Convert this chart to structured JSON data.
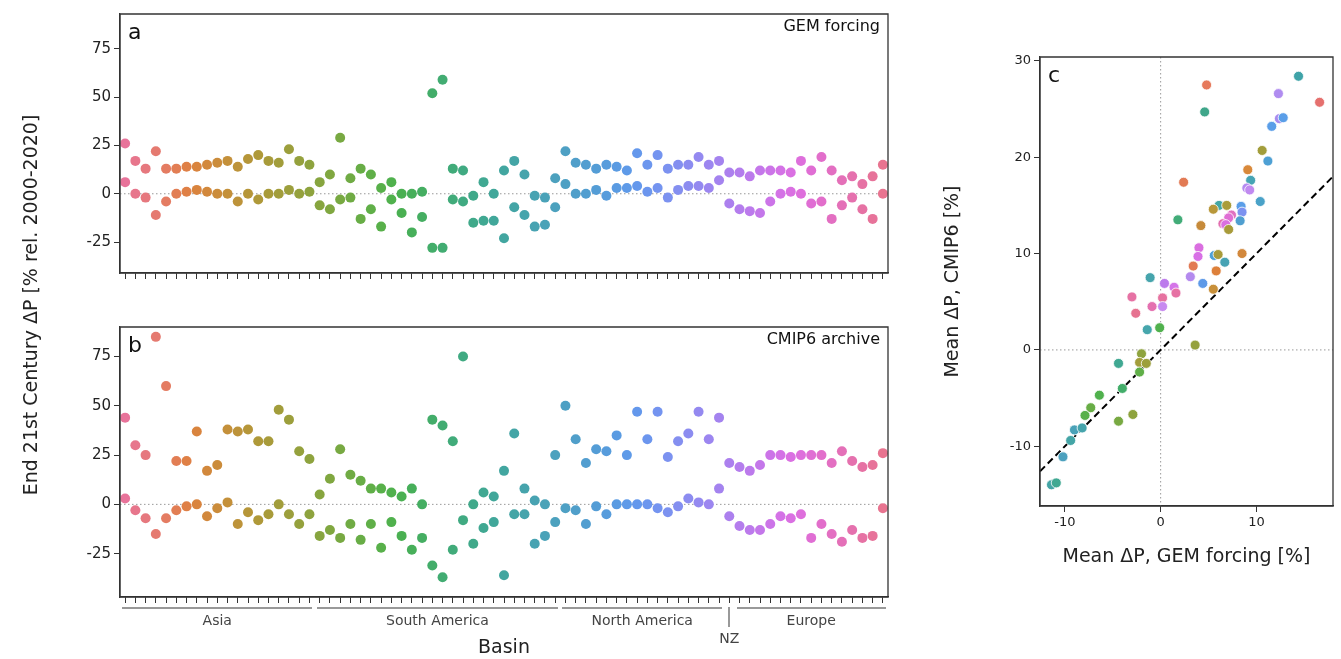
{
  "chart_data": [
    {
      "type": "scatter",
      "ylabel": "End 21st Century ΔP [% rel. 2000-2020]",
      "annotations": [
        "a",
        "GEM forcing"
      ],
      "categories": [
        null,
        null,
        null,
        null,
        null,
        null,
        null,
        null,
        null,
        null,
        null,
        null,
        null,
        null,
        null,
        null,
        null,
        null,
        null,
        null,
        null,
        null,
        null,
        null,
        null,
        null,
        null,
        null,
        null,
        null,
        null,
        null,
        null,
        null,
        null,
        null,
        null,
        null,
        null,
        null,
        null,
        null,
        null,
        null,
        null,
        null,
        null,
        null,
        null,
        null,
        null,
        null,
        null,
        null,
        null,
        null,
        null,
        null,
        null,
        null,
        null,
        null,
        null,
        null,
        null,
        null,
        null,
        null,
        null,
        null,
        null,
        null,
        null,
        null,
        null
      ],
      "ylim": [
        -41,
        93
      ],
      "yticks": [
        -25,
        0,
        25,
        50,
        75
      ],
      "grid": false,
      "legend": false,
      "marker": "circle",
      "ref_lines": [
        {
          "axis": "y",
          "value": 0,
          "color": "#999999",
          "line_style": "dotted"
        }
      ],
      "series": [
        {
          "values": [
            6,
            0,
            -2,
            -11,
            -4,
            0,
            1,
            2,
            1,
            0,
            0,
            -4,
            0,
            -3,
            0,
            0,
            2,
            0,
            1,
            -6,
            -8,
            -3,
            -2,
            -13,
            -8,
            -17,
            -3,
            -10,
            -20,
            -12,
            -28,
            -28,
            -3,
            -4,
            -15,
            -14,
            -14,
            -23,
            -7,
            -11,
            -17,
            -16,
            -7,
            5,
            0,
            0,
            2,
            -1,
            3,
            3,
            4,
            1,
            3,
            -2,
            2,
            4,
            4,
            3,
            7,
            -5,
            -8,
            -9,
            -10,
            -4,
            0,
            1,
            0,
            -5,
            -4,
            -13,
            -6,
            -2,
            -8,
            -13,
            0
          ],
          "colors": [
            "#e8739a",
            "#e7768c",
            "#e6787e",
            "#e57a70",
            "#e47c62",
            "#e27e54",
            "#df8046",
            "#d9843e",
            "#d2883c",
            "#cb8c3b",
            "#c4903a",
            "#bd933a",
            "#b69639",
            "#af9939",
            "#a89b3a",
            "#a29d3b",
            "#9c9f3c",
            "#95a13d",
            "#8ea33e",
            "#87a53f",
            "#80a740",
            "#78a942",
            "#70ab44",
            "#68ad46",
            "#60af48",
            "#58b04a",
            "#50b14d",
            "#4ab052",
            "#47af5a",
            "#45ae62",
            "#43ad6a",
            "#42ac72",
            "#41ab7a",
            "#40aa82",
            "#40a98a",
            "#40a892",
            "#41a79a",
            "#42a6a0",
            "#44a5a6",
            "#46a4ac",
            "#48a3b2",
            "#4aa2b8",
            "#4ca1be",
            "#4ea0c4",
            "#509fca",
            "#529ed0",
            "#549dd6",
            "#579cdc",
            "#5a9be2",
            "#5e9ae8",
            "#6498ec",
            "#6c96ee",
            "#7494f0",
            "#7c92f0",
            "#848ff0",
            "#8c8cf0",
            "#9489f0",
            "#9c86f0",
            "#a483ef",
            "#ac80ee",
            "#b47ded",
            "#bc7aec",
            "#c477ea",
            "#cc74e8",
            "#d472e6",
            "#da70e2",
            "#de6fdc",
            "#e06ed4",
            "#e26ecb",
            "#e36fc2",
            "#e470b8",
            "#e571ae",
            "#e672a4",
            "#e7739a",
            "#e87490"
          ]
        },
        {
          "values": [
            26,
            17,
            13,
            22,
            13,
            13,
            14,
            14,
            15,
            16,
            17,
            14,
            18,
            20,
            17,
            16,
            23,
            17,
            15,
            6,
            10,
            29,
            8,
            13,
            10,
            3,
            6,
            0,
            0,
            1,
            52,
            59,
            13,
            12,
            -1,
            6,
            0,
            12,
            17,
            10,
            -1,
            -2,
            8,
            22,
            16,
            15,
            13,
            15,
            14,
            12,
            21,
            15,
            20,
            13,
            15,
            15,
            19,
            15,
            17,
            11,
            11,
            9,
            12,
            12,
            12,
            11,
            17,
            12,
            19,
            12,
            7,
            9,
            5,
            9,
            15
          ],
          "colors": [
            "#e8739a",
            "#e7768c",
            "#e6787e",
            "#e57a70",
            "#e47c62",
            "#e27e54",
            "#df8046",
            "#d9843e",
            "#d2883c",
            "#cb8c3b",
            "#c4903a",
            "#bd933a",
            "#b69639",
            "#af9939",
            "#a89b3a",
            "#a29d3b",
            "#9c9f3c",
            "#95a13d",
            "#8ea33e",
            "#87a53f",
            "#80a740",
            "#78a942",
            "#70ab44",
            "#68ad46",
            "#60af48",
            "#58b04a",
            "#50b14d",
            "#4ab052",
            "#47af5a",
            "#45ae62",
            "#43ad6a",
            "#42ac72",
            "#41ab7a",
            "#40aa82",
            "#40a98a",
            "#40a892",
            "#41a79a",
            "#42a6a0",
            "#44a5a6",
            "#46a4ac",
            "#48a3b2",
            "#4aa2b8",
            "#4ca1be",
            "#4ea0c4",
            "#509fca",
            "#529ed0",
            "#549dd6",
            "#579cdc",
            "#5a9be2",
            "#5e9ae8",
            "#6498ec",
            "#6c96ee",
            "#7494f0",
            "#7c92f0",
            "#848ff0",
            "#8c8cf0",
            "#9489f0",
            "#9c86f0",
            "#a483ef",
            "#ac80ee",
            "#b47ded",
            "#bc7aec",
            "#c477ea",
            "#cc74e8",
            "#d472e6",
            "#da70e2",
            "#de6fdc",
            "#e06ed4",
            "#e26ecb",
            "#e36fc2",
            "#e470b8",
            "#e571ae",
            "#e672a4",
            "#e7739a",
            "#e87490"
          ]
        }
      ]
    },
    {
      "type": "scatter",
      "xlabel": "Basin",
      "annotations": [
        "b",
        "CMIP6 archive",
        "Asia",
        "South America",
        "North America",
        "NZ",
        "Europe"
      ],
      "categories": [
        null,
        null,
        null,
        null,
        null,
        null,
        null,
        null,
        null,
        null,
        null,
        null,
        null,
        null,
        null,
        null,
        null,
        null,
        null,
        null,
        null,
        null,
        null,
        null,
        null,
        null,
        null,
        null,
        null,
        null,
        null,
        null,
        null,
        null,
        null,
        null,
        null,
        null,
        null,
        null,
        null,
        null,
        null,
        null,
        null,
        null,
        null,
        null,
        null,
        null,
        null,
        null,
        null,
        null,
        null,
        null,
        null,
        null,
        null,
        null,
        null,
        null,
        null,
        null,
        null,
        null,
        null,
        null,
        null,
        null,
        null,
        null,
        null,
        null,
        null
      ],
      "ylim": [
        -47,
        90
      ],
      "yticks": [
        -25,
        0,
        25,
        50,
        75
      ],
      "grid": false,
      "legend": false,
      "marker": "circle",
      "ref_lines": [
        {
          "axis": "y",
          "value": 0,
          "color": "#999999",
          "line_style": "dotted"
        }
      ],
      "series": [
        {
          "values": [
            3,
            -3,
            -7,
            -15,
            -7,
            -3,
            -1,
            0,
            -6,
            -2,
            1,
            -10,
            -4,
            -8,
            -5,
            0,
            -5,
            -10,
            -5,
            -16,
            -13,
            -17,
            -10,
            -18,
            -10,
            -22,
            -9,
            -16,
            -23,
            -17,
            -31,
            -37,
            -23,
            -8,
            -20,
            -12,
            -9,
            -36,
            -5,
            -5,
            -20,
            -16,
            -9,
            -2,
            -3,
            -10,
            -1,
            -5,
            0,
            0,
            0,
            0,
            -2,
            -4,
            -1,
            3,
            1,
            0,
            8,
            -6,
            -11,
            -13,
            -13,
            -10,
            -6,
            -7,
            -5,
            -17,
            -10,
            -15,
            -19,
            -13,
            -17,
            -16,
            -2
          ],
          "colors": [
            "#e8739a",
            "#e7768c",
            "#e6787e",
            "#e57a70",
            "#e47c62",
            "#e27e54",
            "#df8046",
            "#d9843e",
            "#d2883c",
            "#cb8c3b",
            "#c4903a",
            "#bd933a",
            "#b69639",
            "#af9939",
            "#a89b3a",
            "#a29d3b",
            "#9c9f3c",
            "#95a13d",
            "#8ea33e",
            "#87a53f",
            "#80a740",
            "#78a942",
            "#70ab44",
            "#68ad46",
            "#60af48",
            "#58b04a",
            "#50b14d",
            "#4ab052",
            "#47af5a",
            "#45ae62",
            "#43ad6a",
            "#42ac72",
            "#41ab7a",
            "#40aa82",
            "#40a98a",
            "#40a892",
            "#41a79a",
            "#42a6a0",
            "#44a5a6",
            "#46a4ac",
            "#48a3b2",
            "#4aa2b8",
            "#4ca1be",
            "#4ea0c4",
            "#509fca",
            "#529ed0",
            "#549dd6",
            "#579cdc",
            "#5a9be2",
            "#5e9ae8",
            "#6498ec",
            "#6c96ee",
            "#7494f0",
            "#7c92f0",
            "#848ff0",
            "#8c8cf0",
            "#9489f0",
            "#9c86f0",
            "#a483ef",
            "#ac80ee",
            "#b47ded",
            "#bc7aec",
            "#c477ea",
            "#cc74e8",
            "#d472e6",
            "#da70e2",
            "#de6fdc",
            "#e06ed4",
            "#e26ecb",
            "#e36fc2",
            "#e470b8",
            "#e571ae",
            "#e672a4",
            "#e7739a",
            "#e87490"
          ]
        },
        {
          "values": [
            44,
            30,
            25,
            85,
            60,
            22,
            22,
            37,
            17,
            20,
            38,
            37,
            38,
            32,
            32,
            48,
            43,
            27,
            23,
            5,
            13,
            28,
            15,
            12,
            8,
            8,
            6,
            4,
            8,
            0,
            43,
            40,
            32,
            75,
            0,
            6,
            4,
            17,
            36,
            8,
            2,
            0,
            25,
            50,
            33,
            21,
            28,
            27,
            35,
            25,
            47,
            33,
            47,
            24,
            32,
            36,
            47,
            33,
            44,
            21,
            19,
            17,
            20,
            25,
            25,
            24,
            25,
            25,
            25,
            21,
            27,
            22,
            19,
            20,
            26
          ],
          "colors": [
            "#e8739a",
            "#e7768c",
            "#e6787e",
            "#e57a70",
            "#e47c62",
            "#e27e54",
            "#df8046",
            "#d9843e",
            "#d2883c",
            "#cb8c3b",
            "#c4903a",
            "#bd933a",
            "#b69639",
            "#af9939",
            "#a89b3a",
            "#a29d3b",
            "#9c9f3c",
            "#95a13d",
            "#8ea33e",
            "#87a53f",
            "#80a740",
            "#78a942",
            "#70ab44",
            "#68ad46",
            "#60af48",
            "#58b04a",
            "#50b14d",
            "#4ab052",
            "#47af5a",
            "#45ae62",
            "#43ad6a",
            "#42ac72",
            "#41ab7a",
            "#40aa82",
            "#40a98a",
            "#40a892",
            "#41a79a",
            "#42a6a0",
            "#44a5a6",
            "#46a4ac",
            "#48a3b2",
            "#4aa2b8",
            "#4ca1be",
            "#4ea0c4",
            "#509fca",
            "#529ed0",
            "#549dd6",
            "#579cdc",
            "#5a9be2",
            "#5e9ae8",
            "#6498ec",
            "#6c96ee",
            "#7494f0",
            "#7c92f0",
            "#848ff0",
            "#8c8cf0",
            "#9489f0",
            "#9c86f0",
            "#a483ef",
            "#ac80ee",
            "#b47ded",
            "#bc7aec",
            "#c477ea",
            "#cc74e8",
            "#d472e6",
            "#da70e2",
            "#de6fdc",
            "#e06ed4",
            "#e26ecb",
            "#e36fc2",
            "#e470b8",
            "#e571ae",
            "#e672a4",
            "#e7739a",
            "#e87490"
          ]
        }
      ]
    },
    {
      "type": "scatter",
      "xlabel": "Mean ΔP, GEM forcing [%]",
      "ylabel": "Mean ΔP, CMIP6 [%]",
      "annotations": [
        "c"
      ],
      "xlim": [
        -12.6,
        18
      ],
      "ylim": [
        -16.2,
        30.4
      ],
      "xticks": [
        -10,
        0,
        10
      ],
      "yticks": [
        -10,
        0,
        10,
        20,
        30
      ],
      "grid": false,
      "legend": false,
      "marker": "circle",
      "ref_lines": [
        {
          "axis": "x",
          "value": 0,
          "color": "#999999",
          "line_style": "dotted"
        },
        {
          "axis": "y",
          "value": 0,
          "color": "#999999",
          "line_style": "dotted"
        }
      ],
      "series": [
        {
          "x": [
            14.4,
            16.6,
            4.8,
            4.6,
            12.3,
            12.4,
            12.8,
            11.6,
            10.6,
            11.2,
            9.1,
            9.4,
            9.0,
            9.3,
            2.4,
            10.4,
            1.8,
            6.1,
            5.5,
            6.9,
            8.4,
            8.5,
            8.3,
            7.4,
            7.1,
            6.5,
            6.8,
            4.2,
            7.1,
            4.0,
            3.9,
            5.6,
            6.0,
            8.5,
            6.7,
            3.4,
            5.8,
            3.1,
            4.4,
            5.5,
            -1.1,
            0.4,
            1.4,
            1.6,
            -3.0,
            0.2,
            -2.6,
            -0.9,
            0.2,
            -1.4,
            -0.1,
            3.6,
            -2.0,
            -2.2,
            -1.5,
            -4.4,
            -2.2,
            -4.0,
            -6.4,
            -7.3,
            -7.9,
            -4.4,
            -2.9,
            -9.0,
            -8.2,
            -9.4,
            -10.2,
            -11.4,
            -10.9
          ],
          "values": [
            28.4,
            25.7,
            27.5,
            24.7,
            26.6,
            24.0,
            24.1,
            23.2,
            20.7,
            19.6,
            18.7,
            17.6,
            16.8,
            16.6,
            17.4,
            15.4,
            13.5,
            15.0,
            14.6,
            15.0,
            14.9,
            14.3,
            13.4,
            14.0,
            13.7,
            13.1,
            13.0,
            12.9,
            12.5,
            10.6,
            9.7,
            9.8,
            9.9,
            10.0,
            9.1,
            8.7,
            8.2,
            7.6,
            6.9,
            6.3,
            7.5,
            6.9,
            6.5,
            5.9,
            5.5,
            5.4,
            3.8,
            4.5,
            4.5,
            2.1,
            2.3,
            0.5,
            -0.4,
            -1.3,
            -1.4,
            -1.4,
            -2.3,
            -4.0,
            -4.7,
            -6.0,
            -6.8,
            -7.4,
            -6.7,
            -8.3,
            -8.1,
            -9.4,
            -11.1,
            -14.0,
            -13.8
          ],
          "colors": [
            "#3fa3a8",
            "#e5706e",
            "#e67a5c",
            "#3fa68a",
            "#b08cf0",
            "#a88af0",
            "#5a9ee8",
            "#5a9ee8",
            "#a29d3b",
            "#4ea0d4",
            "#d9893a",
            "#46a4b4",
            "#b48af0",
            "#c08af0",
            "#e27a54",
            "#4aa2c8",
            "#42ac78",
            "#44a7a4",
            "#b8983a",
            "#aa9c3a",
            "#5a9ee8",
            "#7c92f0",
            "#509fd0",
            "#e070c0",
            "#e06ed4",
            "#e26eb0",
            "#da70e0",
            "#c68a3a",
            "#a89b3a",
            "#da6ee0",
            "#d870e6",
            "#4ea0d4",
            "#a89b3a",
            "#d2883c",
            "#48a3b4",
            "#e27a54",
            "#dd803a",
            "#b48aee",
            "#5e9ae8",
            "#c8903a",
            "#46a4ac",
            "#bc7aec",
            "#d474e8",
            "#e672a4",
            "#e672a4",
            "#e672a0",
            "#e67290",
            "#e470b0",
            "#c88af0",
            "#46a6ac",
            "#50b14d",
            "#95a13d",
            "#8ea33e",
            "#a29d3b",
            "#9c9f3c",
            "#40a892",
            "#60af48",
            "#43ad6a",
            "#50b14d",
            "#68ad46",
            "#58b04a",
            "#78a942",
            "#8ea33e",
            "#4aa2b8",
            "#46a4ac",
            "#44a5a6",
            "#4ca1be",
            "#44a5a6",
            "#40a892"
          ]
        },
        {
          "type": "line",
          "x": [
            -12.6,
            18
          ],
          "values": [
            -12.6,
            18
          ],
          "color": "#000000",
          "line_style": "dashed",
          "marker": "none"
        }
      ]
    }
  ]
}
